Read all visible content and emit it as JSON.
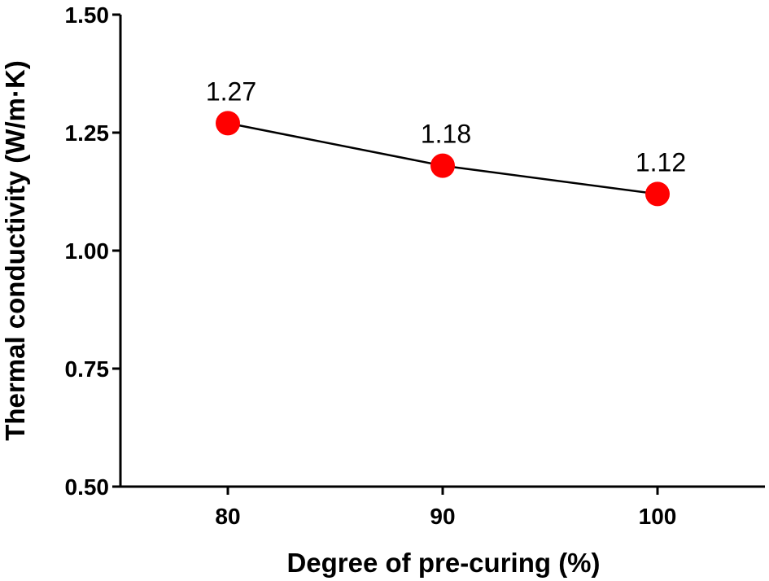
{
  "chart_data": {
    "type": "line",
    "title": "",
    "xlabel": "Degree of pre-curing (%)",
    "ylabel": "Thermal conductivity (W/m·K)",
    "x": [
      80,
      90,
      100
    ],
    "x_tick_labels": [
      "80",
      "90",
      "100"
    ],
    "xlim": [
      75,
      105
    ],
    "ylim": [
      0.5,
      1.5
    ],
    "y_ticks": [
      0.5,
      0.75,
      1.0,
      1.25,
      1.5
    ],
    "y_tick_labels": [
      "0.50",
      "0.75",
      "1.00",
      "1.25",
      "1.50"
    ],
    "series": [
      {
        "values": [
          1.27,
          1.18,
          1.12
        ],
        "data_labels": [
          "1.27",
          "1.18",
          "1.12"
        ],
        "line_color": "#000000",
        "marker_color": "#ff0000"
      }
    ],
    "grid": false,
    "legend": "none"
  }
}
